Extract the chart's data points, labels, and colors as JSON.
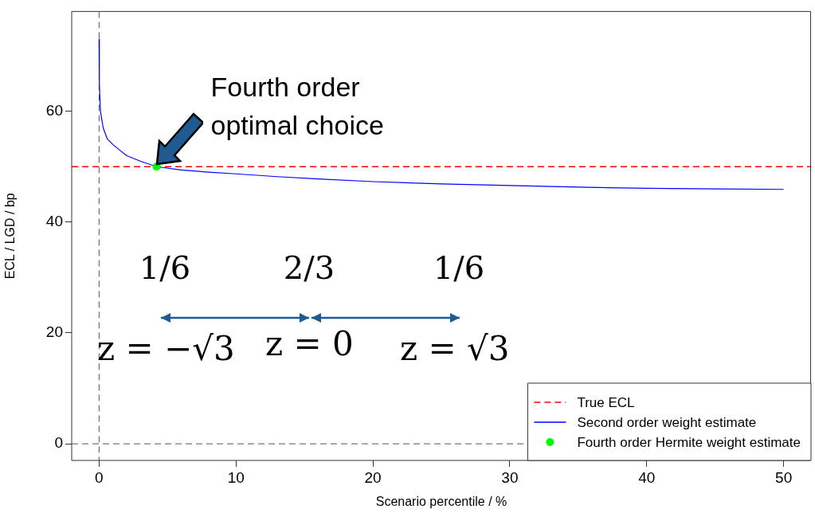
{
  "chart_data": {
    "type": "line",
    "xlabel": "Scenario percentile / %",
    "ylabel": "ECL / LGD / bp",
    "xlim": [
      -2,
      52
    ],
    "xticks": [
      0,
      10,
      20,
      30,
      40,
      50
    ],
    "ylim": [
      -3,
      78
    ],
    "yticks": [
      0,
      20,
      40,
      60
    ],
    "series": [
      {
        "name": "Second order weight estimate",
        "color": "#0000ff",
        "marker": "none",
        "line_style": "solid",
        "x": [
          0,
          0.02,
          0.1,
          0.3,
          0.6,
          1,
          1.5,
          2,
          3,
          4.2,
          6,
          8,
          10,
          13,
          16,
          20,
          25,
          30,
          35,
          40,
          45,
          50
        ],
        "values": [
          73,
          65,
          60,
          57,
          55,
          54,
          53,
          52,
          51,
          50,
          49.4,
          49,
          48.7,
          48.2,
          47.8,
          47.3,
          46.9,
          46.6,
          46.3,
          46.1,
          46,
          45.9
        ]
      },
      {
        "name": "Fourth order Hermite weight estimate",
        "type": "scatter",
        "color": "#00ff00",
        "marker": "circle",
        "x": [
          4.2
        ],
        "values": [
          50
        ]
      }
    ],
    "ref_lines": [
      {
        "axis": "y",
        "value": 50,
        "label": "True ECL",
        "color": "#ff0000",
        "line_style": "dashed"
      },
      {
        "axis": "x",
        "value": 0,
        "color": "#555555",
        "line_style": "dashed"
      },
      {
        "axis": "y",
        "value": 0,
        "color": "#555555",
        "line_style": "dashed"
      }
    ],
    "legend": "bottom right",
    "annotations": [
      {
        "text": "Fourth order\noptimal choice",
        "x": 4.2,
        "y": 50
      },
      "1/6",
      "2/3",
      "1/6",
      "z = −√3",
      "z = 0",
      "z = √3"
    ]
  }
}
